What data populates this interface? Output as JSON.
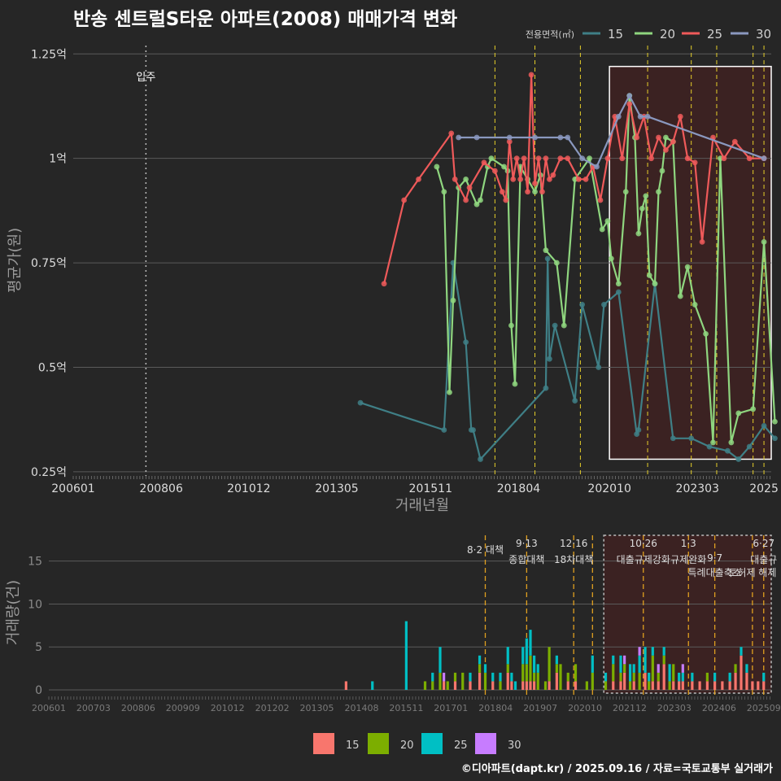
{
  "title": "반송 센트럴S타운 아파트(2008) 매매가격 변화",
  "credit": "©디아파트(dapt.kr) / 2025.09.16 / 자료=국토교통부 실거래가",
  "colors": {
    "s15_line": "#3f7f86",
    "s20_line": "#8fd67f",
    "s25_line": "#ef5a5a",
    "s30_line": "#8a98bf",
    "b15": "#f8766d",
    "b20": "#7cae00",
    "b25": "#00bfc4",
    "b30": "#c77cff",
    "dash": "#e6cf2a",
    "highlight": "#3e2222",
    "grid": "#5a5a5a"
  },
  "chart_data": [
    {
      "type": "line",
      "title": "반송 센트럴S타운 아파트(2008) 매매가격 변화",
      "xlabel": "거래년월",
      "ylabel": "평균가(원)",
      "xlim": [
        2006.0,
        2025.2
      ],
      "ylim": [
        0.24,
        1.27
      ],
      "y_ticks": [
        0.25,
        0.5,
        0.75,
        1.0,
        1.25
      ],
      "y_tick_labels": [
        "0.25억",
        "0.5억",
        "0.75억",
        "1억",
        "1.25억"
      ],
      "x_ticks": [
        2006.0,
        2008.42,
        2010.83,
        2013.25,
        2015.83,
        2018.25,
        2020.75,
        2023.17,
        2025.0
      ],
      "x_tick_labels": [
        "200601",
        "200806",
        "201012",
        "201305",
        "201511",
        "201804",
        "202010",
        "202303",
        "2025"
      ],
      "legend_title": "전용면적(㎡)",
      "legend": [
        "15",
        "20",
        "25",
        "30"
      ],
      "annotation": {
        "x": 2008.0,
        "label": "입주"
      },
      "highlight_range": [
        2020.75,
        2025.2
      ],
      "policy_lines": [
        2017.6,
        2018.7,
        2019.95,
        2021.8,
        2023.0,
        2023.7,
        2024.7,
        2025.0
      ],
      "series": [
        {
          "name": "15",
          "x": [
            2013.9,
            2016.2,
            2016.45,
            2016.8,
            2016.95,
            2017.0,
            2017.2,
            2019.0,
            2019.05,
            2019.1,
            2019.25,
            2019.8,
            2020.0,
            2020.45,
            2020.6,
            2021.0,
            2021.5,
            2021.55,
            2022.0,
            2022.5,
            2023.0,
            2023.5,
            2024.0,
            2024.3,
            2024.6,
            2025.0,
            2025.3
          ],
          "y": [
            0.415,
            0.35,
            0.75,
            0.56,
            0.35,
            0.35,
            0.28,
            0.45,
            0.76,
            0.52,
            0.6,
            0.42,
            0.65,
            0.5,
            0.65,
            0.68,
            0.34,
            0.35,
            0.7,
            0.33,
            0.33,
            0.31,
            0.3,
            0.28,
            0.31,
            0.36,
            0.33
          ]
        },
        {
          "name": "20",
          "x": [
            2016.0,
            2016.2,
            2016.35,
            2016.45,
            2016.6,
            2016.8,
            2017.1,
            2017.2,
            2017.4,
            2017.5,
            2017.85,
            2017.95,
            2018.05,
            2018.15,
            2018.3,
            2018.5,
            2018.7,
            2018.85,
            2019.0,
            2019.3,
            2019.5,
            2019.8,
            2020.2,
            2020.55,
            2020.7,
            2020.8,
            2021.0,
            2021.2,
            2021.3,
            2021.45,
            2021.55,
            2021.65,
            2021.75,
            2021.85,
            2022.0,
            2022.1,
            2022.2,
            2022.3,
            2022.5,
            2022.7,
            2022.9,
            2023.1,
            2023.4,
            2023.6,
            2023.8,
            2024.1,
            2024.3,
            2024.7,
            2025.0,
            2025.3
          ],
          "y": [
            0.98,
            0.92,
            0.44,
            0.66,
            0.93,
            0.95,
            0.89,
            0.9,
            0.98,
            1.0,
            0.98,
            0.97,
            0.6,
            0.46,
            0.98,
            0.95,
            0.92,
            0.96,
            0.78,
            0.75,
            0.6,
            0.95,
            1.0,
            0.83,
            0.85,
            0.76,
            0.7,
            0.92,
            1.15,
            1.05,
            0.82,
            0.88,
            0.91,
            0.72,
            0.7,
            0.92,
            0.97,
            1.05,
            1.04,
            0.67,
            0.74,
            0.65,
            0.58,
            0.32,
            1.0,
            0.32,
            0.39,
            0.4,
            0.8,
            0.37
          ]
        },
        {
          "name": "25",
          "x": [
            2014.55,
            2015.1,
            2015.5,
            2016.4,
            2016.5,
            2016.8,
            2016.9,
            2017.3,
            2017.6,
            2017.8,
            2017.9,
            2018.0,
            2018.1,
            2018.2,
            2018.3,
            2018.4,
            2018.5,
            2018.6,
            2018.7,
            2018.8,
            2018.9,
            2019.0,
            2019.1,
            2019.2,
            2019.4,
            2019.6,
            2019.9,
            2020.1,
            2020.3,
            2020.5,
            2020.7,
            2020.9,
            2021.1,
            2021.3,
            2021.5,
            2021.7,
            2021.9,
            2022.1,
            2022.3,
            2022.5,
            2022.7,
            2022.9,
            2023.1,
            2023.3,
            2023.6,
            2023.9,
            2024.2,
            2024.6,
            2025.0
          ],
          "y": [
            0.7,
            0.9,
            0.95,
            1.06,
            0.95,
            0.9,
            0.93,
            0.99,
            0.97,
            0.92,
            0.9,
            1.04,
            0.95,
            1.0,
            0.95,
            1.0,
            0.92,
            1.2,
            0.94,
            1.0,
            0.92,
            1.0,
            0.95,
            0.96,
            1.0,
            1.0,
            0.95,
            0.95,
            0.98,
            0.9,
            1.0,
            1.1,
            1.0,
            1.13,
            1.05,
            1.1,
            1.0,
            1.05,
            1.02,
            1.04,
            1.1,
            1.0,
            0.99,
            0.8,
            1.05,
            1.0,
            1.04,
            1.0,
            1.0
          ]
        },
        {
          "name": "30",
          "x": [
            2016.6,
            2017.1,
            2018.0,
            2018.7,
            2019.4,
            2019.6,
            2020.0,
            2020.4,
            2021.0,
            2021.3,
            2021.6,
            2021.8,
            2025.0
          ],
          "y": [
            1.05,
            1.05,
            1.05,
            1.05,
            1.05,
            1.05,
            1.0,
            0.98,
            1.1,
            1.15,
            1.1,
            1.1,
            1.0
          ]
        }
      ]
    },
    {
      "type": "bar",
      "ylabel": "거래량(건)",
      "ylim": [
        0,
        18
      ],
      "y_ticks": [
        0,
        5,
        10,
        15
      ],
      "x_tick_labels": [
        "200601",
        "200703",
        "200806",
        "200909",
        "201012",
        "201202",
        "201305",
        "201408",
        "201511",
        "201701",
        "201804",
        "201907",
        "202010",
        "202112",
        "202303",
        "202406",
        "202509"
      ],
      "legend": [
        "15",
        "20",
        "25",
        "30"
      ],
      "highlight_range": [
        2020.75,
        2025.2
      ],
      "policy_lines": [
        {
          "x": 2017.6,
          "date": "8·2",
          "label": "대책"
        },
        {
          "x": 2018.7,
          "date": "9·13",
          "label": "종합대책"
        },
        {
          "x": 2019.95,
          "date": "12·16",
          "label": "18차대책"
        },
        {
          "x": 2020.45,
          "date": "",
          "label": ""
        },
        {
          "x": 2021.8,
          "date": "10·26",
          "label": "대출규제강화"
        },
        {
          "x": 2023.0,
          "date": "1·3",
          "label": "규제완화"
        },
        {
          "x": 2023.7,
          "date": "9·7",
          "label": "특례대출축소"
        },
        {
          "x": 2024.7,
          "date": "",
          "label": "토허제 해제"
        },
        {
          "x": 2025.0,
          "date": "6·27",
          "label": "대출규"
        }
      ],
      "stacks": [
        {
          "x": 2013.9,
          "v": [
            1,
            0,
            0,
            0
          ]
        },
        {
          "x": 2014.6,
          "v": [
            0,
            0,
            1,
            0
          ]
        },
        {
          "x": 2015.5,
          "v": [
            0,
            0,
            8,
            0
          ]
        },
        {
          "x": 2016.0,
          "v": [
            0,
            1,
            0,
            0
          ]
        },
        {
          "x": 2016.2,
          "v": [
            0,
            1,
            1,
            0
          ]
        },
        {
          "x": 2016.4,
          "v": [
            0,
            2,
            3,
            0
          ]
        },
        {
          "x": 2016.5,
          "v": [
            1,
            0,
            0,
            1
          ]
        },
        {
          "x": 2016.6,
          "v": [
            0,
            1,
            0,
            0
          ]
        },
        {
          "x": 2016.8,
          "v": [
            1,
            1,
            0,
            0
          ]
        },
        {
          "x": 2017.0,
          "v": [
            0,
            2,
            0,
            0
          ]
        },
        {
          "x": 2017.2,
          "v": [
            1,
            0,
            1,
            0
          ]
        },
        {
          "x": 2017.45,
          "v": [
            2,
            1,
            1,
            0
          ]
        },
        {
          "x": 2017.6,
          "v": [
            0,
            2,
            1,
            0
          ]
        },
        {
          "x": 2017.8,
          "v": [
            1,
            0,
            1,
            0
          ]
        },
        {
          "x": 2018.0,
          "v": [
            0,
            1,
            1,
            0
          ]
        },
        {
          "x": 2018.2,
          "v": [
            2,
            1,
            2,
            0
          ]
        },
        {
          "x": 2018.3,
          "v": [
            1,
            0,
            1,
            0
          ]
        },
        {
          "x": 2018.4,
          "v": [
            0,
            0,
            1,
            0
          ]
        },
        {
          "x": 2018.6,
          "v": [
            1,
            2,
            2,
            0
          ]
        },
        {
          "x": 2018.7,
          "v": [
            1,
            2,
            3,
            0
          ]
        },
        {
          "x": 2018.8,
          "v": [
            1,
            3,
            3,
            0
          ]
        },
        {
          "x": 2018.9,
          "v": [
            1,
            1,
            2,
            0
          ]
        },
        {
          "x": 2019.0,
          "v": [
            0,
            2,
            1,
            0
          ]
        },
        {
          "x": 2019.2,
          "v": [
            0,
            1,
            0,
            0
          ]
        },
        {
          "x": 2019.3,
          "v": [
            1,
            4,
            0,
            0
          ]
        },
        {
          "x": 2019.5,
          "v": [
            2,
            1,
            1,
            0
          ]
        },
        {
          "x": 2019.6,
          "v": [
            0,
            3,
            0,
            0
          ]
        },
        {
          "x": 2019.8,
          "v": [
            1,
            1,
            0,
            0
          ]
        },
        {
          "x": 2020.0,
          "v": [
            1,
            2,
            0,
            0
          ]
        },
        {
          "x": 2020.3,
          "v": [
            0,
            1,
            0,
            0
          ]
        },
        {
          "x": 2020.45,
          "v": [
            0,
            2,
            2,
            0
          ]
        },
        {
          "x": 2020.8,
          "v": [
            0,
            1,
            1,
            0
          ]
        },
        {
          "x": 2021.0,
          "v": [
            1,
            2,
            1,
            0
          ]
        },
        {
          "x": 2021.2,
          "v": [
            1,
            1,
            2,
            0
          ]
        },
        {
          "x": 2021.3,
          "v": [
            2,
            1,
            0,
            1
          ]
        },
        {
          "x": 2021.45,
          "v": [
            0,
            1,
            2,
            0
          ]
        },
        {
          "x": 2021.55,
          "v": [
            1,
            1,
            1,
            0
          ]
        },
        {
          "x": 2021.7,
          "v": [
            0,
            2,
            2,
            1
          ]
        },
        {
          "x": 2021.85,
          "v": [
            2,
            0,
            3,
            0
          ]
        },
        {
          "x": 2021.95,
          "v": [
            0,
            1,
            1,
            0
          ]
        },
        {
          "x": 2022.05,
          "v": [
            1,
            3,
            1,
            0
          ]
        },
        {
          "x": 2022.2,
          "v": [
            1,
            1,
            0,
            1
          ]
        },
        {
          "x": 2022.35,
          "v": [
            3,
            1,
            1,
            0
          ]
        },
        {
          "x": 2022.5,
          "v": [
            0,
            1,
            2,
            0
          ]
        },
        {
          "x": 2022.6,
          "v": [
            1,
            2,
            0,
            0
          ]
        },
        {
          "x": 2022.75,
          "v": [
            1,
            0,
            1,
            0
          ]
        },
        {
          "x": 2022.85,
          "v": [
            1,
            0,
            1,
            1
          ]
        },
        {
          "x": 2023.1,
          "v": [
            1,
            0,
            1,
            0
          ]
        },
        {
          "x": 2023.3,
          "v": [
            1,
            0,
            0,
            0
          ]
        },
        {
          "x": 2023.5,
          "v": [
            1,
            1,
            0,
            0
          ]
        },
        {
          "x": 2023.7,
          "v": [
            1,
            0,
            1,
            0
          ]
        },
        {
          "x": 2023.9,
          "v": [
            1,
            0,
            0,
            0
          ]
        },
        {
          "x": 2024.1,
          "v": [
            1,
            0,
            1,
            0
          ]
        },
        {
          "x": 2024.25,
          "v": [
            2,
            1,
            0,
            0
          ]
        },
        {
          "x": 2024.4,
          "v": [
            4,
            0,
            1,
            0
          ]
        },
        {
          "x": 2024.55,
          "v": [
            2,
            0,
            1,
            0
          ]
        },
        {
          "x": 2024.7,
          "v": [
            1,
            0,
            0,
            0
          ]
        },
        {
          "x": 2024.85,
          "v": [
            1,
            0,
            0,
            0
          ]
        },
        {
          "x": 2025.0,
          "v": [
            1,
            0,
            1,
            0
          ]
        }
      ]
    }
  ]
}
